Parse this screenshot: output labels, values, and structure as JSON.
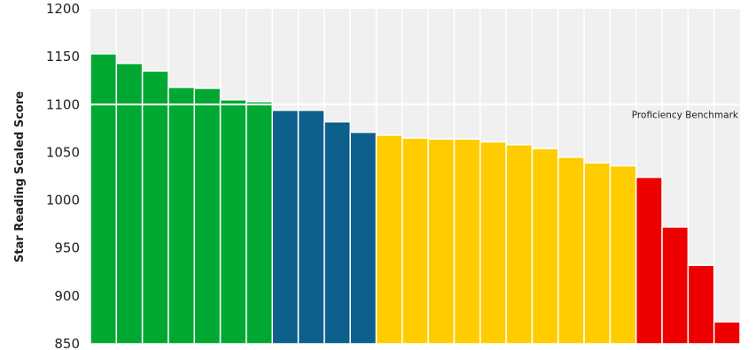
{
  "chart_data": {
    "type": "bar",
    "title": "",
    "xlabel": "",
    "ylabel": "Star Reading Scaled Score",
    "ylim": [
      850,
      1200
    ],
    "yticks": [
      850,
      900,
      950,
      1000,
      1050,
      1100,
      1150,
      1200
    ],
    "grid": true,
    "legend": "none",
    "benchmark": {
      "label": "Proficiency Benchmark",
      "value": 1100,
      "color": "#ffffff"
    },
    "series": [
      {
        "color": "#00a832",
        "values": [
          1153,
          1143,
          1135,
          1118,
          1117,
          1105,
          1103
        ]
      },
      {
        "color": "#0d5f8c",
        "values": [
          1094,
          1094,
          1082,
          1071
        ]
      },
      {
        "color": "#ffcc00",
        "values": [
          1068,
          1065,
          1064,
          1064,
          1061,
          1058,
          1054,
          1045,
          1039,
          1036
        ]
      },
      {
        "color": "#ee0000",
        "values": [
          1024,
          972,
          932,
          873
        ]
      }
    ]
  }
}
